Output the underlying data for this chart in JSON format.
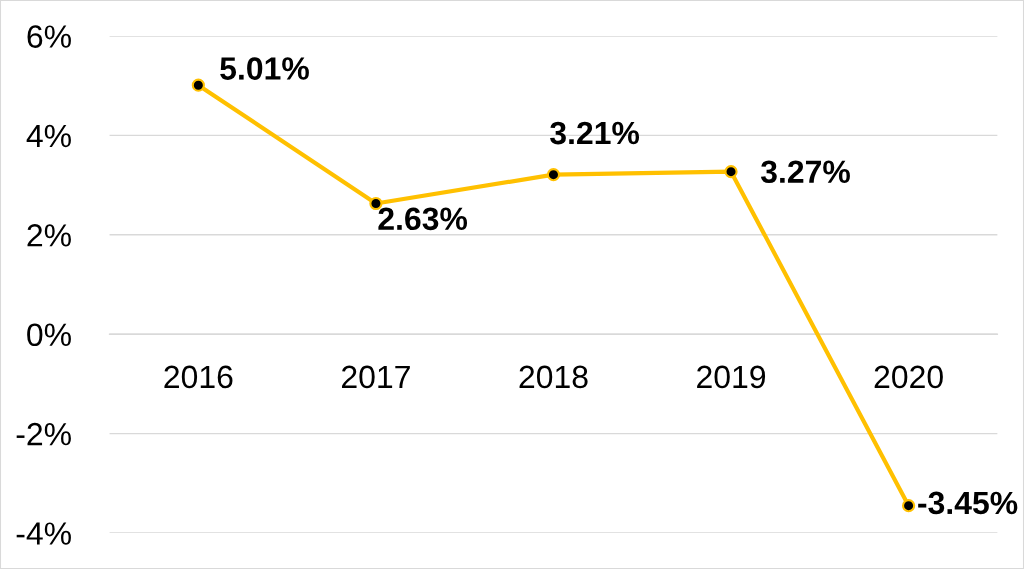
{
  "chart_data": {
    "type": "line",
    "categories": [
      "2016",
      "2017",
      "2018",
      "2019",
      "2020"
    ],
    "series": [
      {
        "color": "#ffc000",
        "values": [
          5.01,
          2.63,
          3.21,
          3.27,
          -3.45
        ],
        "value_labels": [
          "5.01%",
          "2.63%",
          "3.21%",
          "3.27%",
          "-3.45%"
        ]
      }
    ],
    "ylim": [
      -4,
      6
    ],
    "yticks": [
      {
        "value": -4,
        "label": "-4%"
      },
      {
        "value": -2,
        "label": "-2%"
      },
      {
        "value": 0,
        "label": "0%"
      },
      {
        "value": 2,
        "label": "2%"
      },
      {
        "value": 4,
        "label": "4%"
      },
      {
        "value": 6,
        "label": "6%"
      }
    ],
    "grid": "y",
    "marker": "circle",
    "line_style": "solid"
  }
}
